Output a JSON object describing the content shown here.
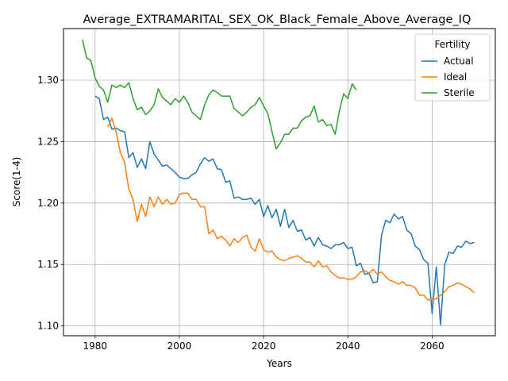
{
  "chart_data": {
    "type": "line",
    "title": "Average_EXTRAMARITAL_SEX_OK_Black_Female_Above_Average_IQ",
    "xlabel": "Years",
    "ylabel": "Score(1-4)",
    "xlim": [
      1972.5,
      2075
    ],
    "ylim": [
      1.092,
      1.342
    ],
    "xticks": [
      "1980",
      "2000",
      "2020",
      "2040",
      "2060"
    ],
    "yticks": [
      "1.10",
      "1.15",
      "1.20",
      "1.25",
      "1.30"
    ],
    "grid": true,
    "legend": {
      "title": "Fertility",
      "position": "top-right"
    },
    "colors": {
      "Actual": "#1f77b4",
      "Ideal": "#ff7f0e",
      "Sterile": "#2ca02c"
    },
    "series": [
      {
        "name": "Actual",
        "x": [
          1980,
          1981,
          1982,
          1983,
          1984,
          1985,
          1986,
          1987,
          1988,
          1989,
          1990,
          1991,
          1992,
          1993,
          1994,
          1995,
          1996,
          1997,
          1998,
          1999,
          2000,
          2001,
          2002,
          2003,
          2004,
          2005,
          2006,
          2007,
          2008,
          2009,
          2010,
          2011,
          2012,
          2013,
          2014,
          2015,
          2016,
          2017,
          2018,
          2019,
          2020,
          2021,
          2022,
          2023,
          2024,
          2025,
          2026,
          2027,
          2028,
          2029,
          2030,
          2031,
          2032,
          2033,
          2034,
          2035,
          2036,
          2037,
          2038,
          2039,
          2040,
          2041,
          2042,
          2043,
          2044,
          2045,
          2046,
          2047,
          2048,
          2049,
          2050,
          2051,
          2052,
          2053,
          2054,
          2055,
          2056,
          2057,
          2058,
          2059,
          2060,
          2061,
          2062,
          2063,
          2064,
          2065,
          2066,
          2067,
          2068,
          2069,
          2070
        ],
        "values": [
          1.287,
          1.285,
          1.268,
          1.27,
          1.26,
          1.261,
          1.259,
          1.258,
          1.237,
          1.241,
          1.229,
          1.236,
          1.228,
          1.25,
          1.24,
          1.235,
          1.23,
          1.231,
          1.228,
          1.225,
          1.221,
          1.22,
          1.22,
          1.223,
          1.225,
          1.232,
          1.237,
          1.234,
          1.236,
          1.228,
          1.227,
          1.217,
          1.218,
          1.204,
          1.205,
          1.203,
          1.203,
          1.204,
          1.199,
          1.203,
          1.189,
          1.198,
          1.188,
          1.195,
          1.181,
          1.195,
          1.18,
          1.186,
          1.177,
          1.178,
          1.17,
          1.172,
          1.165,
          1.172,
          1.166,
          1.165,
          1.163,
          1.166,
          1.166,
          1.168,
          1.163,
          1.164,
          1.149,
          1.151,
          1.142,
          1.143,
          1.135,
          1.136,
          1.174,
          1.186,
          1.184,
          1.191,
          1.187,
          1.189,
          1.178,
          1.175,
          1.165,
          1.162,
          1.154,
          1.151,
          1.11,
          1.148,
          1.101,
          1.15,
          1.16,
          1.159,
          1.165,
          1.164,
          1.169,
          1.167,
          1.168
        ]
      },
      {
        "name": "Ideal",
        "x": [
          1983,
          1984,
          1985,
          1986,
          1987,
          1988,
          1989,
          1990,
          1991,
          1992,
          1993,
          1994,
          1995,
          1996,
          1997,
          1998,
          1999,
          2000,
          2001,
          2002,
          2003,
          2004,
          2005,
          2006,
          2007,
          2008,
          2009,
          2010,
          2011,
          2012,
          2013,
          2014,
          2015,
          2016,
          2017,
          2018,
          2019,
          2020,
          2021,
          2022,
          2023,
          2024,
          2025,
          2026,
          2027,
          2028,
          2029,
          2030,
          2031,
          2032,
          2033,
          2034,
          2035,
          2036,
          2037,
          2038,
          2039,
          2040,
          2041,
          2042,
          2043,
          2044,
          2045,
          2046,
          2047,
          2048,
          2049,
          2050,
          2051,
          2052,
          2053,
          2054,
          2055,
          2056,
          2057,
          2058,
          2059,
          2060,
          2061,
          2062,
          2063,
          2064,
          2065,
          2066,
          2067,
          2068,
          2069,
          2070
        ],
        "values": [
          1.262,
          1.269,
          1.258,
          1.241,
          1.233,
          1.211,
          1.203,
          1.185,
          1.199,
          1.189,
          1.205,
          1.197,
          1.205,
          1.199,
          1.203,
          1.199,
          1.2,
          1.207,
          1.208,
          1.208,
          1.203,
          1.203,
          1.197,
          1.197,
          1.175,
          1.178,
          1.171,
          1.173,
          1.17,
          1.165,
          1.171,
          1.168,
          1.172,
          1.174,
          1.164,
          1.161,
          1.171,
          1.162,
          1.16,
          1.161,
          1.156,
          1.154,
          1.153,
          1.155,
          1.156,
          1.157,
          1.155,
          1.152,
          1.152,
          1.148,
          1.153,
          1.148,
          1.149,
          1.144,
          1.141,
          1.139,
          1.139,
          1.138,
          1.138,
          1.14,
          1.144,
          1.145,
          1.143,
          1.146,
          1.142,
          1.144,
          1.14,
          1.137,
          1.136,
          1.134,
          1.136,
          1.133,
          1.133,
          1.131,
          1.125,
          1.125,
          1.121,
          1.122,
          1.122,
          1.125,
          1.128,
          1.132,
          1.133,
          1.135,
          1.134,
          1.132,
          1.13,
          1.127
        ]
      },
      {
        "name": "Sterile",
        "x": [
          1977,
          1978,
          1979,
          1980,
          1981,
          1982,
          1983,
          1984,
          1985,
          1986,
          1987,
          1988,
          1989,
          1990,
          1991,
          1992,
          1993,
          1994,
          1995,
          1996,
          1997,
          1998,
          1999,
          2000,
          2001,
          2002,
          2003,
          2004,
          2005,
          2006,
          2007,
          2008,
          2009,
          2010,
          2011,
          2012,
          2013,
          2014,
          2015,
          2016,
          2017,
          2018,
          2019,
          2020,
          2021,
          2022,
          2023,
          2024,
          2025,
          2026,
          2027,
          2028,
          2029,
          2030,
          2031,
          2032,
          2033,
          2034,
          2035,
          2036,
          2037,
          2038,
          2039,
          2040,
          2041,
          2042
        ],
        "values": [
          1.333,
          1.318,
          1.316,
          1.302,
          1.295,
          1.292,
          1.282,
          1.296,
          1.294,
          1.296,
          1.294,
          1.298,
          1.285,
          1.276,
          1.278,
          1.272,
          1.275,
          1.28,
          1.293,
          1.286,
          1.283,
          1.28,
          1.285,
          1.282,
          1.287,
          1.282,
          1.274,
          1.271,
          1.268,
          1.28,
          1.288,
          1.292,
          1.29,
          1.287,
          1.287,
          1.287,
          1.277,
          1.274,
          1.271,
          1.274,
          1.278,
          1.28,
          1.286,
          1.279,
          1.273,
          1.258,
          1.244,
          1.249,
          1.256,
          1.256,
          1.261,
          1.261,
          1.267,
          1.27,
          1.271,
          1.279,
          1.266,
          1.268,
          1.263,
          1.264,
          1.256,
          1.275,
          1.289,
          1.285,
          1.297,
          1.292
        ]
      }
    ]
  }
}
